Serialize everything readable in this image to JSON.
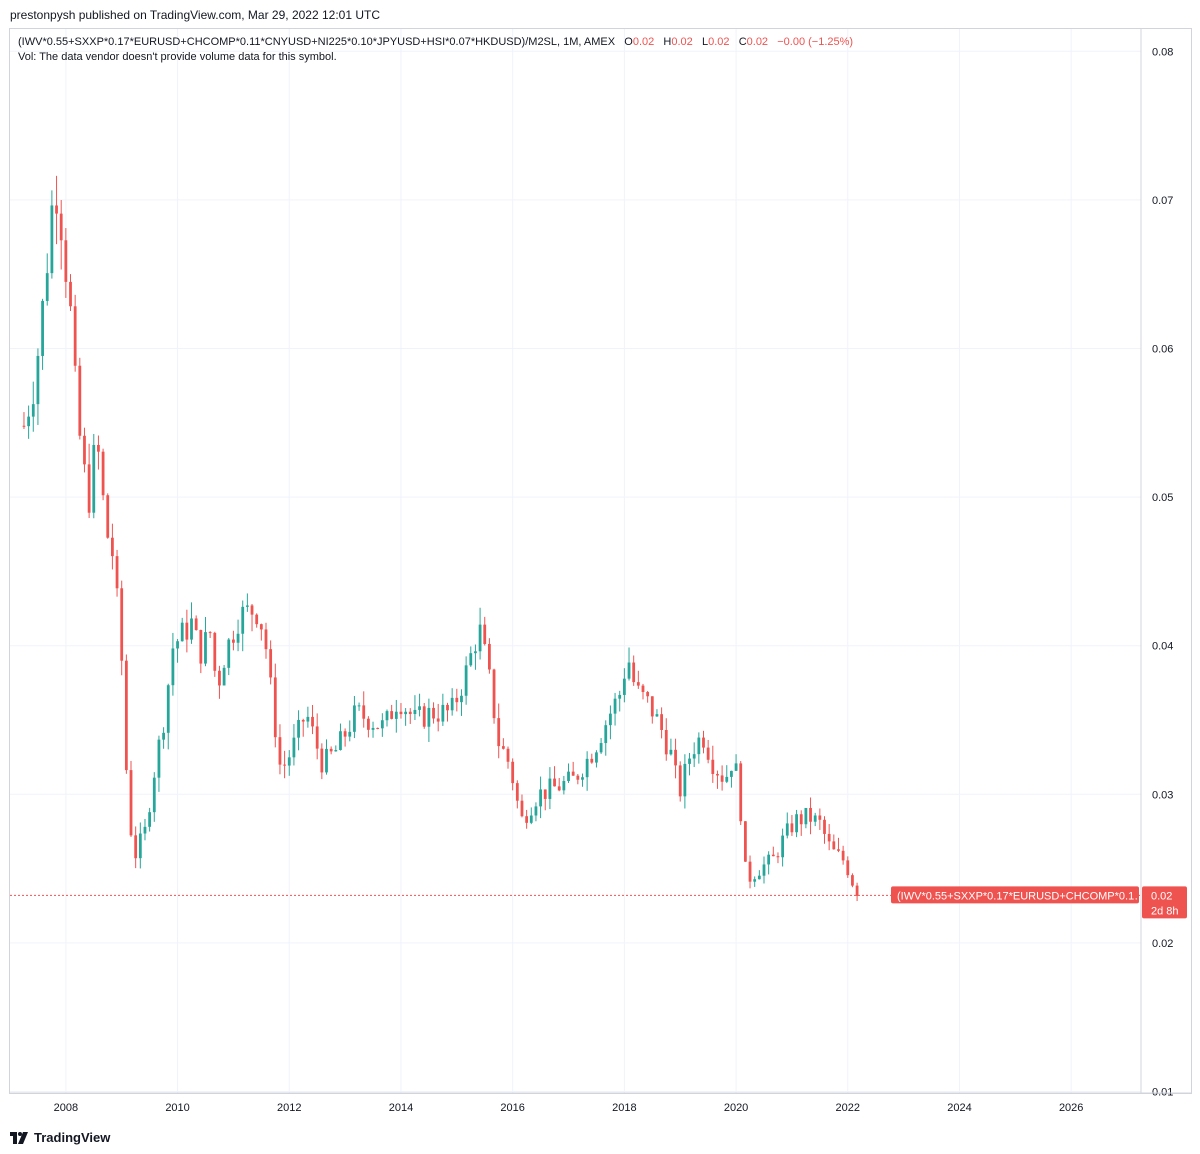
{
  "header": {
    "published_by": "prestonpysh published on TradingView.com, Mar 29, 2022 12:01 UTC"
  },
  "legend": {
    "symbol": "(IWV*0.55+SXXP*0.17*EURUSD+CHCOMP*0.11*CNYUSD+NI225*0.10*JPYUSD+HSI*0.07*HKDUSD)/M2SL, 1M, AMEX",
    "o_label": "O",
    "o_value": "0.02",
    "h_label": "H",
    "h_value": "0.02",
    "l_label": "L",
    "l_value": "0.02",
    "c_label": "C",
    "c_value": "0.02",
    "change": "−0.00 (−1.25%)",
    "vol_note": "Vol: The data vendor doesn't provide volume data for this symbol."
  },
  "price_tag": {
    "label": "(IWV*0.55+SXXP*0.17*EURUSD+CHCOMP*0.1…",
    "value": "0.02",
    "countdown": "2d 8h",
    "color": "#ef5350"
  },
  "footer": {
    "brand": "TradingView"
  },
  "colors": {
    "up": "#26a69a",
    "down": "#ef5350",
    "grid": "#f0f3fa",
    "axis": "#d1d4dc"
  },
  "chart_data": {
    "type": "candlestick",
    "interval": "1M",
    "x_ticks": [
      "2008",
      "2010",
      "2012",
      "2014",
      "2016",
      "2018",
      "2020",
      "2022",
      "2024",
      "2026"
    ],
    "y_ticks": [
      "0.01",
      "0.02",
      "0.03",
      "0.04",
      "0.05",
      "0.06",
      "0.07",
      "0.08"
    ],
    "x_range": [
      2007.0,
      2027.25
    ],
    "y_range": [
      0.0099,
      0.0815
    ],
    "grid": true,
    "last_price": 0.0232,
    "anchors": [
      {
        "t": 2007.25,
        "v": 0.0548
      },
      {
        "t": 2007.45,
        "v": 0.058
      },
      {
        "t": 2007.62,
        "v": 0.064
      },
      {
        "t": 2007.8,
        "v": 0.0715
      },
      {
        "t": 2007.92,
        "v": 0.0685
      },
      {
        "t": 2008.08,
        "v": 0.0625
      },
      {
        "t": 2008.2,
        "v": 0.0555
      },
      {
        "t": 2008.4,
        "v": 0.0495
      },
      {
        "t": 2008.55,
        "v": 0.054
      },
      {
        "t": 2008.72,
        "v": 0.0478
      },
      {
        "t": 2008.85,
        "v": 0.046
      },
      {
        "t": 2009.0,
        "v": 0.039
      },
      {
        "t": 2009.12,
        "v": 0.0285
      },
      {
        "t": 2009.25,
        "v": 0.026
      },
      {
        "t": 2009.42,
        "v": 0.0275
      },
      {
        "t": 2009.58,
        "v": 0.0315
      },
      {
        "t": 2009.75,
        "v": 0.035
      },
      {
        "t": 2009.92,
        "v": 0.04
      },
      {
        "t": 2010.25,
        "v": 0.0415
      },
      {
        "t": 2010.4,
        "v": 0.0395
      },
      {
        "t": 2010.6,
        "v": 0.041
      },
      {
        "t": 2010.7,
        "v": 0.037
      },
      {
        "t": 2010.85,
        "v": 0.0395
      },
      {
        "t": 2011.1,
        "v": 0.042
      },
      {
        "t": 2011.4,
        "v": 0.0425
      },
      {
        "t": 2011.55,
        "v": 0.041
      },
      {
        "t": 2011.7,
        "v": 0.036
      },
      {
        "t": 2011.85,
        "v": 0.0315
      },
      {
        "t": 2012.05,
        "v": 0.033
      },
      {
        "t": 2012.3,
        "v": 0.0355
      },
      {
        "t": 2012.6,
        "v": 0.032
      },
      {
        "t": 2012.85,
        "v": 0.033
      },
      {
        "t": 2013.2,
        "v": 0.0355
      },
      {
        "t": 2013.45,
        "v": 0.035
      },
      {
        "t": 2013.7,
        "v": 0.0345
      },
      {
        "t": 2013.95,
        "v": 0.0365
      },
      {
        "t": 2014.25,
        "v": 0.035
      },
      {
        "t": 2014.55,
        "v": 0.0355
      },
      {
        "t": 2014.9,
        "v": 0.0355
      },
      {
        "t": 2015.15,
        "v": 0.038
      },
      {
        "t": 2015.4,
        "v": 0.0412
      },
      {
        "t": 2015.55,
        "v": 0.0385
      },
      {
        "t": 2015.75,
        "v": 0.0335
      },
      {
        "t": 2015.95,
        "v": 0.032
      },
      {
        "t": 2016.15,
        "v": 0.0282
      },
      {
        "t": 2016.45,
        "v": 0.03
      },
      {
        "t": 2016.8,
        "v": 0.0305
      },
      {
        "t": 2017.1,
        "v": 0.031
      },
      {
        "t": 2017.45,
        "v": 0.033
      },
      {
        "t": 2017.75,
        "v": 0.0355
      },
      {
        "t": 2017.95,
        "v": 0.037
      },
      {
        "t": 2018.05,
        "v": 0.0395
      },
      {
        "t": 2018.2,
        "v": 0.037
      },
      {
        "t": 2018.45,
        "v": 0.036
      },
      {
        "t": 2018.65,
        "v": 0.0345
      },
      {
        "t": 2018.85,
        "v": 0.0325
      },
      {
        "t": 2018.98,
        "v": 0.03
      },
      {
        "t": 2019.2,
        "v": 0.033
      },
      {
        "t": 2019.4,
        "v": 0.034
      },
      {
        "t": 2019.6,
        "v": 0.032
      },
      {
        "t": 2019.8,
        "v": 0.031
      },
      {
        "t": 2019.95,
        "v": 0.0325
      },
      {
        "t": 2020.05,
        "v": 0.0305
      },
      {
        "t": 2020.18,
        "v": 0.0242
      },
      {
        "t": 2020.4,
        "v": 0.025
      },
      {
        "t": 2020.65,
        "v": 0.0255
      },
      {
        "t": 2020.85,
        "v": 0.027
      },
      {
        "t": 2021.05,
        "v": 0.0282
      },
      {
        "t": 2021.3,
        "v": 0.0285
      },
      {
        "t": 2021.5,
        "v": 0.028
      },
      {
        "t": 2021.7,
        "v": 0.0262
      },
      {
        "t": 2021.95,
        "v": 0.0255
      },
      {
        "t": 2022.1,
        "v": 0.024
      },
      {
        "t": 2022.22,
        "v": 0.0232
      }
    ]
  }
}
